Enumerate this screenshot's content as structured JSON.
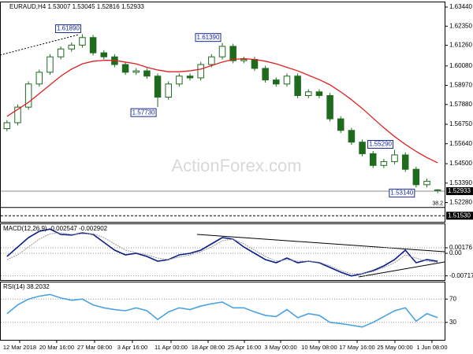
{
  "watermark": "ActionForex.com",
  "chart_data": [
    {
      "type": "candlestick",
      "title": "EURAUD,H4",
      "up_color": "#ffffff",
      "down_color": "#1e6b1e",
      "line_color": "#1e6b1e",
      "x": [
        0,
        1,
        2,
        3,
        4,
        5,
        6,
        7,
        8,
        9,
        10,
        11,
        12,
        13,
        14,
        15,
        16,
        17,
        18,
        19,
        20,
        21,
        22,
        23,
        24,
        25,
        26,
        27,
        28,
        29,
        30,
        31,
        32,
        33,
        34,
        35,
        36,
        37,
        38,
        39,
        40
      ],
      "xlim": [
        -0.5,
        40.5
      ],
      "xticks": [
        {
          "value": 1.18,
          "label": "12 Mar 2018"
        },
        {
          "value": 4.62,
          "label": "20 Mar 16:00"
        },
        {
          "value": 8.14,
          "label": "27 Mar 08:00"
        },
        {
          "value": 11.65,
          "label": "3 Apr 16:00"
        },
        {
          "value": 15.24,
          "label": "11 Apr 00:00"
        },
        {
          "value": 18.68,
          "label": "18 Apr 08:00"
        },
        {
          "value": 22.05,
          "label": "25 Apr 16:00"
        },
        {
          "value": 25.42,
          "label": "3 May 00:00"
        },
        {
          "value": 29.0,
          "label": "10 May 08:00"
        },
        {
          "value": 32.52,
          "label": "17 May 16:00"
        },
        {
          "value": 36.03,
          "label": "25 May 00:00"
        },
        {
          "value": 39.47,
          "label": "1 Jun 08:00"
        }
      ],
      "open": [
        1.565,
        1.5684,
        1.5773,
        1.5905,
        1.5972,
        1.606,
        1.6105,
        1.6127,
        1.617,
        1.6083,
        1.606,
        1.6016,
        1.5972,
        1.598,
        1.595,
        1.583,
        1.5905,
        1.595,
        1.594,
        1.6016,
        1.606,
        1.612,
        1.6038,
        1.6045,
        1.5994,
        1.5928,
        1.5905,
        1.595,
        1.5839,
        1.586,
        1.5839,
        1.5706,
        1.564,
        1.5573,
        1.5507,
        1.544,
        1.5462,
        1.55,
        1.5418,
        1.533,
        1.53007
      ],
      "high": [
        1.5699,
        1.5788,
        1.592,
        1.5987,
        1.6075,
        1.612,
        1.6142,
        1.6189,
        1.6185,
        1.6098,
        1.6075,
        1.6031,
        1.5995,
        1.5995,
        1.5965,
        1.592,
        1.5965,
        1.5965,
        1.6031,
        1.6075,
        1.6139,
        1.6135,
        1.606,
        1.606,
        1.6009,
        1.5943,
        1.5965,
        1.5965,
        1.5875,
        1.5875,
        1.5854,
        1.5721,
        1.5655,
        1.5588,
        1.5522,
        1.5477,
        1.5529,
        1.5515,
        1.5433,
        1.5365,
        1.53045
      ],
      "low": [
        1.5635,
        1.5669,
        1.5758,
        1.589,
        1.5957,
        1.6045,
        1.609,
        1.6112,
        1.6068,
        1.6045,
        1.6001,
        1.5957,
        1.5957,
        1.5935,
        1.5773,
        1.5815,
        1.589,
        1.5925,
        1.5925,
        1.6001,
        1.6045,
        1.6023,
        1.6023,
        1.5979,
        1.5913,
        1.589,
        1.589,
        1.5824,
        1.5824,
        1.5824,
        1.5691,
        1.5625,
        1.5558,
        1.5492,
        1.5425,
        1.5425,
        1.5447,
        1.5403,
        1.5314,
        1.5315,
        1.52816
      ],
      "close": [
        1.5684,
        1.5773,
        1.5905,
        1.5972,
        1.606,
        1.6105,
        1.6127,
        1.617,
        1.6083,
        1.606,
        1.6016,
        1.5972,
        1.598,
        1.595,
        1.583,
        1.5905,
        1.595,
        1.594,
        1.6016,
        1.606,
        1.612,
        1.6038,
        1.6045,
        1.5994,
        1.5928,
        1.5905,
        1.595,
        1.5839,
        1.586,
        1.5839,
        1.5706,
        1.564,
        1.5573,
        1.5507,
        1.544,
        1.5462,
        1.55,
        1.5418,
        1.533,
        1.535,
        1.52933
      ],
      "moving_average": {
        "color": "#e02020",
        "values": [
          1.572,
          1.576,
          1.58,
          1.585,
          1.59,
          1.595,
          1.599,
          1.602,
          1.6035,
          1.604,
          1.604,
          1.603,
          1.602,
          1.6,
          1.5985,
          1.5975,
          1.5975,
          1.598,
          1.599,
          1.601,
          1.603,
          1.6045,
          1.605,
          1.6045,
          1.6035,
          1.602,
          1.6,
          1.598,
          1.5955,
          1.593,
          1.59,
          1.586,
          1.5815,
          1.5765,
          1.571,
          1.5655,
          1.5605,
          1.556,
          1.552,
          1.5485,
          1.5455
        ]
      },
      "ylim": [
        1.5118,
        1.6371
      ],
      "yticks": [
        {
          "value": 1.6344,
          "label": "1.63440"
        },
        {
          "value": 1.6235,
          "label": "1.62350"
        },
        {
          "value": 1.6126,
          "label": "1.61260"
        },
        {
          "value": 1.6008,
          "label": "1.60080"
        },
        {
          "value": 1.5897,
          "label": "1.58970"
        },
        {
          "value": 1.5788,
          "label": "1.57880"
        },
        {
          "value": 1.5675,
          "label": "1.56750"
        },
        {
          "value": 1.5564,
          "label": "1.55640"
        },
        {
          "value": 1.545,
          "label": "1.54500"
        },
        {
          "value": 1.5339,
          "label": "1.53390"
        },
        {
          "value": 1.5228,
          "label": "1.52280"
        }
      ],
      "fib_level": {
        "name": "38.2",
        "value": 1.52
      },
      "support_level": {
        "value": 1.5153,
        "label": "1.51530"
      },
      "annotations": [
        {
          "label": "1.61890",
          "value": 1.6189,
          "x": 7,
          "position": "above"
        },
        {
          "label": "1.61390",
          "value": 1.6139,
          "x": 20,
          "position": "above"
        },
        {
          "label": "1.57730",
          "value": 1.5773,
          "x": 14,
          "position": "below"
        },
        {
          "label": "1.55290",
          "value": 1.5529,
          "x": 36,
          "position": "above"
        },
        {
          "label": "1.53140",
          "value": 1.5314,
          "x": 38,
          "position": "below"
        }
      ]
    },
    {
      "type": "line",
      "title": "MACD(12,26,9)",
      "x": [
        0,
        1,
        2,
        3,
        4,
        5,
        6,
        7,
        8,
        9,
        10,
        11,
        12,
        13,
        14,
        15,
        16,
        17,
        18,
        19,
        20,
        21,
        22,
        23,
        24,
        25,
        26,
        27,
        28,
        29,
        30,
        31,
        32,
        33,
        34,
        35,
        36,
        37,
        38,
        39,
        40
      ],
      "xlim": [
        -0.5,
        40.5
      ],
      "ylim": [
        -0.0085,
        0.0095
      ],
      "yticks": [
        0.00176,
        {
          "value": 0,
          "label": "0.00"
        },
        -0.00717
      ],
      "series": [
        {
          "color": "#0b1f8a",
          "values": [
            -0.001,
            0.002,
            0.005,
            0.007,
            0.0077,
            0.006,
            0.0058,
            0.0065,
            0.006,
            0.0035,
            0.001,
            -0.0005,
            0.0,
            -0.001,
            -0.0025,
            -0.002,
            -0.0005,
            0.0,
            0.001,
            0.003,
            0.005,
            0.0045,
            0.002,
            0.0,
            -0.002,
            -0.003,
            -0.0015,
            -0.003,
            -0.0025,
            -0.003,
            -0.0045,
            -0.006,
            -0.0072,
            -0.0065,
            -0.0055,
            -0.004,
            -0.002,
            0.001,
            -0.003,
            -0.002,
            -0.002547
          ]
        },
        {
          "color": "#999999",
          "values": [
            -0.002,
            -0.0005,
            0.002,
            0.0045,
            0.0062,
            0.0065,
            0.006,
            0.0062,
            0.0062,
            0.005,
            0.003,
            0.001,
            0.0002,
            -0.0005,
            -0.0015,
            -0.002,
            -0.0012,
            -0.0005,
            0.0005,
            0.002,
            0.004,
            0.0045,
            0.003,
            0.001,
            -0.001,
            -0.0025,
            -0.002,
            -0.0025,
            -0.0025,
            -0.0028,
            -0.004,
            -0.0055,
            -0.0065,
            -0.0065,
            -0.0058,
            -0.0045,
            -0.003,
            -0.0005,
            -0.0015,
            -0.0025,
            -0.002902
          ]
        }
      ]
    },
    {
      "type": "line",
      "title": "RSI(14)",
      "x": [
        0,
        1,
        2,
        3,
        4,
        5,
        6,
        7,
        8,
        9,
        10,
        11,
        12,
        13,
        14,
        15,
        16,
        17,
        18,
        19,
        20,
        21,
        22,
        23,
        24,
        25,
        26,
        27,
        28,
        29,
        30,
        31,
        32,
        33,
        34,
        35,
        36,
        37,
        38,
        39,
        40
      ],
      "xlim": [
        -0.5,
        40.5
      ],
      "ylim": [
        0,
        100
      ],
      "yticks": [
        70,
        30
      ],
      "series": [
        {
          "color": "#4aa3df",
          "values": [
            45,
            60,
            70,
            75,
            78,
            72,
            68,
            70,
            60,
            55,
            52,
            50,
            55,
            50,
            35,
            48,
            55,
            52,
            58,
            62,
            65,
            55,
            55,
            48,
            42,
            40,
            52,
            38,
            45,
            42,
            30,
            28,
            25,
            22,
            30,
            40,
            50,
            55,
            32,
            45,
            38.2032
          ]
        }
      ]
    }
  ]
}
